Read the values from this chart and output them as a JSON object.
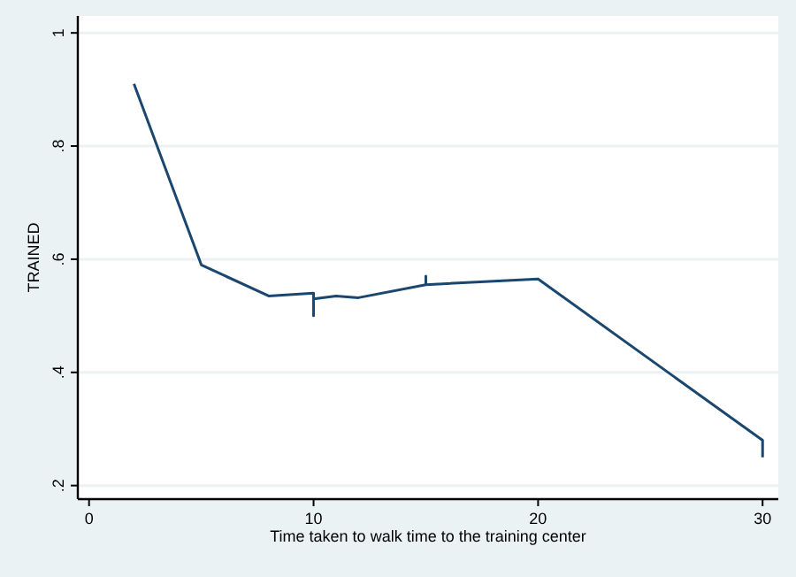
{
  "chart_data": {
    "type": "line",
    "xlabel": "Time taken to walk time to the training center",
    "ylabel": "TRAINED",
    "x": [
      2,
      5,
      8,
      10,
      10,
      10,
      11,
      12,
      15,
      15,
      15,
      20,
      30,
      30
    ],
    "series": [
      {
        "color": "#1a476f",
        "values": [
          0.91,
          0.59,
          0.535,
          0.54,
          0.5,
          0.53,
          0.535,
          0.532,
          0.555,
          0.57,
          0.555,
          0.565,
          0.28,
          0.25
        ]
      }
    ],
    "xlim": [
      -0.5,
      30.7
    ],
    "xticks": [
      0,
      10,
      20,
      30
    ],
    "ylim": [
      0.176,
      1.03
    ],
    "yticks": [
      {
        "value": 0.2,
        "label": ".2"
      },
      {
        "value": 0.4,
        "label": ".4"
      },
      {
        "value": 0.6,
        "label": ".6"
      },
      {
        "value": 0.8,
        "label": ".8"
      },
      1
    ],
    "grid": "y",
    "marker": "none",
    "line_style": "solid"
  }
}
